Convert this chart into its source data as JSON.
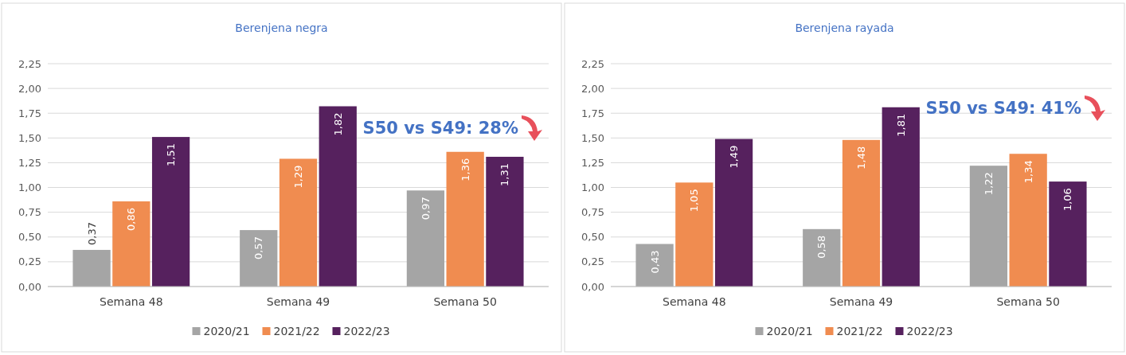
{
  "chart_data": [
    {
      "type": "bar",
      "title": "Berenjena negra",
      "categories": [
        "Semana 48",
        "Semana 49",
        "Semana 50"
      ],
      "series": [
        {
          "name": "2020/21",
          "color": "#a5a5a5",
          "values": [
            0.37,
            0.57,
            0.97
          ],
          "value_labels": [
            "0,37",
            "0,57",
            "0,97"
          ]
        },
        {
          "name": "2021/22",
          "color": "#f08c50",
          "values": [
            0.86,
            1.29,
            1.36
          ],
          "value_labels": [
            "0,86",
            "1,29",
            "1,36"
          ]
        },
        {
          "name": "2022/23",
          "color": "#56215e",
          "values": [
            1.51,
            1.82,
            1.31
          ],
          "value_labels": [
            "1,51",
            "1,82",
            "1,31"
          ]
        }
      ],
      "ylim": [
        0,
        2.25
      ],
      "yticks": [
        {
          "value": 0,
          "label": "0,00"
        },
        {
          "value": 0.25,
          "label": "0,25"
        },
        {
          "value": 0.5,
          "label": "0,50"
        },
        {
          "value": 0.75,
          "label": "0,75"
        },
        {
          "value": 1,
          "label": "1,00"
        },
        {
          "value": 1.25,
          "label": "1,25"
        },
        {
          "value": 1.5,
          "label": "1,50"
        },
        {
          "value": 1.75,
          "label": "1,75"
        },
        {
          "value": 2,
          "label": "2,00"
        },
        {
          "value": 2.25,
          "label": "2,25"
        }
      ],
      "grid": "y",
      "legend": "bottom",
      "annotations": [
        "S50 vs S49: 28%"
      ]
    },
    {
      "type": "bar",
      "title": "Berenjena rayada",
      "categories": [
        "Semana 48",
        "Semana 49",
        "Semana 50"
      ],
      "series": [
        {
          "name": "2020/21",
          "color": "#a5a5a5",
          "values": [
            0.43,
            0.58,
            1.22
          ],
          "value_labels": [
            "0,43",
            "0,58",
            "1,22"
          ]
        },
        {
          "name": "2021/22",
          "color": "#f08c50",
          "values": [
            1.05,
            1.48,
            1.34
          ],
          "value_labels": [
            "1,05",
            "1,48",
            "1,34"
          ]
        },
        {
          "name": "2022/23",
          "color": "#56215e",
          "values": [
            1.49,
            1.81,
            1.06
          ],
          "value_labels": [
            "1,49",
            "1,81",
            "1,06"
          ]
        }
      ],
      "ylim": [
        0,
        2.25
      ],
      "yticks": [
        {
          "value": 0,
          "label": "0,00"
        },
        {
          "value": 0.25,
          "label": "0,25"
        },
        {
          "value": 0.5,
          "label": "0,50"
        },
        {
          "value": 0.75,
          "label": "0,75"
        },
        {
          "value": 1,
          "label": "1,00"
        },
        {
          "value": 1.25,
          "label": "1,25"
        },
        {
          "value": 1.5,
          "label": "1,50"
        },
        {
          "value": 1.75,
          "label": "1,75"
        },
        {
          "value": 2,
          "label": "2,00"
        },
        {
          "value": 2.25,
          "label": "2,25"
        }
      ],
      "grid": "y",
      "legend": "bottom",
      "annotations": [
        "S50 vs S49: 41%"
      ]
    }
  ]
}
